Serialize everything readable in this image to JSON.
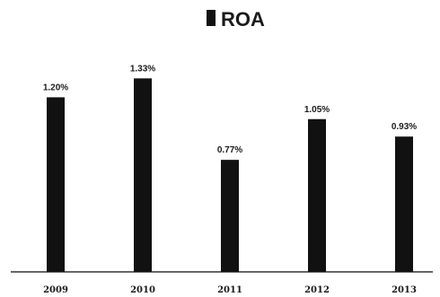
{
  "chart_data": {
    "type": "bar",
    "title": "",
    "xlabel": "",
    "ylabel": "",
    "categories": [
      "2009",
      "2010",
      "2011",
      "2012",
      "2013"
    ],
    "series": [
      {
        "name": "ROA",
        "values": [
          1.2,
          1.33,
          0.77,
          1.05,
          0.93
        ],
        "value_labels": [
          "1.20%",
          "1.33%",
          "0.77%",
          "1.05%",
          "0.93%"
        ]
      }
    ],
    "ylim": [
      0,
      1.4
    ],
    "grid": false,
    "legend_position": "top-center",
    "colors": {
      "bar": "#111111",
      "baseline": "#333333",
      "text": "#1a1a1a",
      "background": "#ffffff"
    }
  }
}
